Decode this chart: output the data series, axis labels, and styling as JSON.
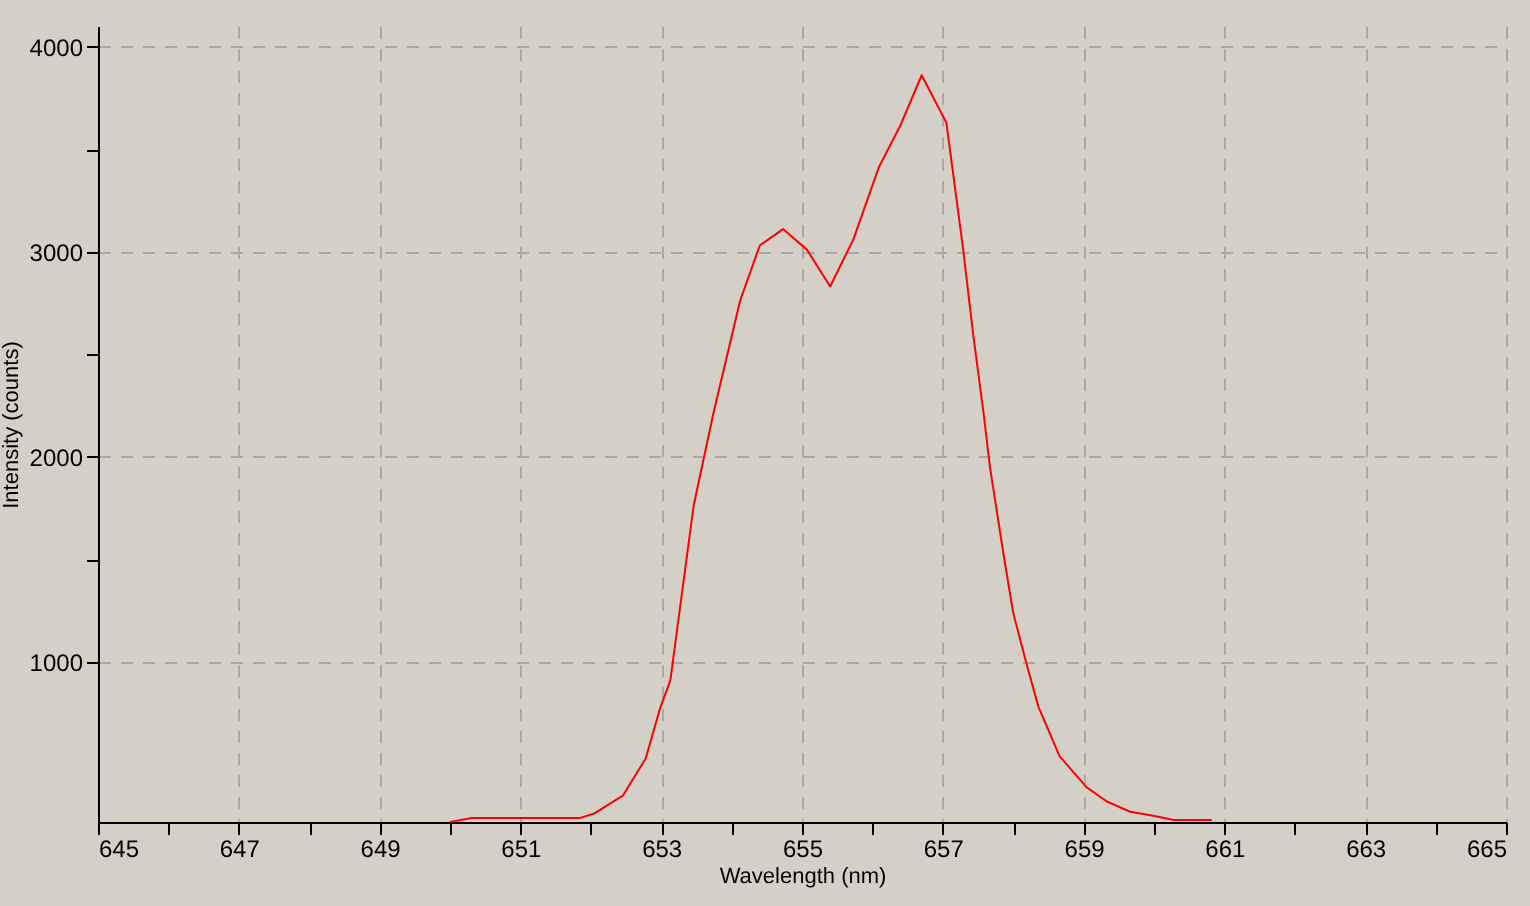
{
  "chart_data": {
    "type": "line",
    "xlabel": "Wavelength (nm)",
    "ylabel": "Intensity (counts)",
    "x": [
      650.0,
      650.31,
      651.85,
      652.04,
      652.46,
      652.78,
      652.98,
      653.13,
      653.46,
      653.74,
      654.12,
      654.4,
      654.73,
      655.07,
      655.4,
      655.73,
      656.09,
      656.39,
      656.7,
      657.05,
      657.29,
      657.43,
      657.58,
      657.67,
      657.86,
      658.0,
      658.19,
      658.36,
      658.66,
      659.04,
      659.33,
      659.66,
      659.99,
      660.28,
      660.82
    ],
    "series": [
      {
        "color": "#ff0000",
        "values": [
          220,
          240,
          240,
          260,
          350,
          530,
          770,
          910,
          1760,
          2210,
          2760,
          3030,
          3110,
          3010,
          2830,
          3060,
          3410,
          3610,
          3860,
          3630,
          3010,
          2600,
          2210,
          1950,
          1530,
          1240,
          990,
          780,
          540,
          390,
          320,
          270,
          250,
          230,
          230
        ]
      }
    ],
    "xlim": [
      645,
      665
    ],
    "ylim": [
      220,
      4100
    ],
    "xticks": [
      645,
      {
        "value": 646,
        "label": null
      },
      647,
      {
        "value": 648,
        "label": null
      },
      649,
      {
        "value": 650,
        "label": null
      },
      651,
      {
        "value": 652,
        "label": null
      },
      653,
      {
        "value": 654,
        "label": null
      },
      655,
      {
        "value": 656,
        "label": null
      },
      657,
      {
        "value": 658,
        "label": null
      },
      659,
      {
        "value": 660,
        "label": null
      },
      661,
      {
        "value": 662,
        "label": null
      },
      663,
      {
        "value": 664,
        "label": null
      },
      665
    ],
    "yticks": [
      1000,
      {
        "value": 1500,
        "label": null
      },
      2000,
      {
        "value": 2500,
        "label": null
      },
      3000,
      {
        "value": 3500,
        "label": null
      },
      4000
    ],
    "grid": true
  }
}
